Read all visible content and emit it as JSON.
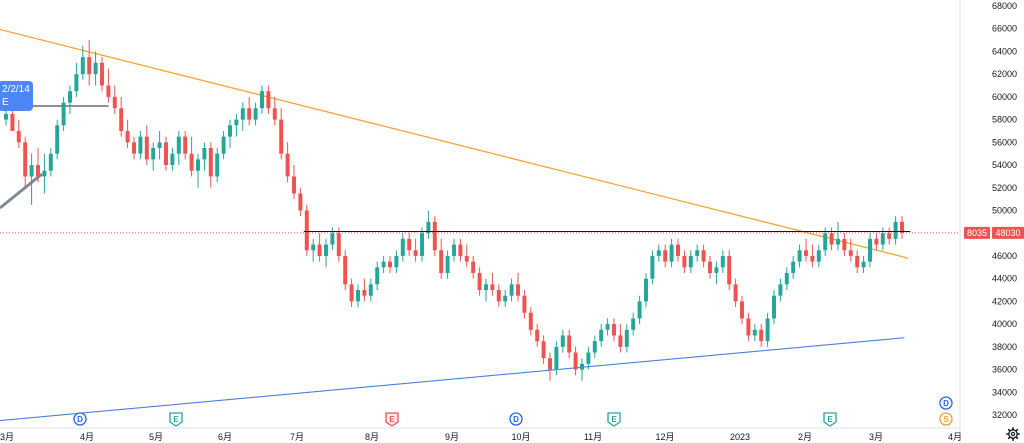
{
  "chart_data": {
    "type": "candlestick",
    "y_axis": {
      "range": [
        31000,
        68000
      ],
      "position": "right",
      "ticks": [
        "68000",
        "66000",
        "64000",
        "62000",
        "60000",
        "58000",
        "56000",
        "54000",
        "52000",
        "50000",
        "48000",
        "46000",
        "44000",
        "42000",
        "40000",
        "38000",
        "36000",
        "34000",
        "32000"
      ]
    },
    "x_axis": {
      "ticks": [
        "3月",
        "4月",
        "5月",
        "6月",
        "7月",
        "8月",
        "9月",
        "10月",
        "11月",
        "12月",
        "2023",
        "2月",
        "3月",
        "4月"
      ]
    },
    "price_labels": {
      "change": "8035",
      "last": "48030",
      "last_value": 48030
    },
    "tooltip": {
      "line1": "2/2/14",
      "line2": "E"
    },
    "colors": {
      "up": "#26a69a",
      "down": "#ef5350",
      "resistance": "#f7a437",
      "support": "#4d7fe0",
      "horizontal": "#131722",
      "last_price": "#ef5350"
    },
    "candles": [
      [
        58000,
        59000,
        57500,
        58500
      ],
      [
        58500,
        60000,
        57000,
        57000
      ],
      [
        57000,
        58000,
        55500,
        56000
      ],
      [
        56000,
        56500,
        52000,
        53000
      ],
      [
        53000,
        55000,
        50500,
        54000
      ],
      [
        54000,
        55500,
        52500,
        53000
      ],
      [
        53000,
        55000,
        51500,
        53500
      ],
      [
        53500,
        55500,
        53000,
        55000
      ],
      [
        55000,
        58000,
        54500,
        57500
      ],
      [
        57500,
        60000,
        57000,
        59500
      ],
      [
        59500,
        61000,
        58500,
        60500
      ],
      [
        60500,
        63000,
        60000,
        62000
      ],
      [
        62000,
        64500,
        61500,
        63500
      ],
      [
        63500,
        65000,
        61000,
        62000
      ],
      [
        62000,
        64000,
        61000,
        63000
      ],
      [
        63000,
        63500,
        60500,
        61000
      ],
      [
        61000,
        62500,
        59500,
        60000
      ],
      [
        60000,
        61000,
        58500,
        59000
      ],
      [
        59000,
        60000,
        56500,
        57000
      ],
      [
        57000,
        58000,
        55500,
        56000
      ],
      [
        56000,
        56500,
        54500,
        55000
      ],
      [
        55000,
        57000,
        54500,
        56500
      ],
      [
        56500,
        57500,
        54000,
        54500
      ],
      [
        54500,
        56000,
        53500,
        55500
      ],
      [
        55500,
        57000,
        54500,
        56000
      ],
      [
        56000,
        56500,
        53500,
        54000
      ],
      [
        54000,
        55500,
        53500,
        55000
      ],
      [
        55000,
        57000,
        54000,
        56500
      ],
      [
        56500,
        57000,
        54500,
        55000
      ],
      [
        55000,
        56500,
        53000,
        53500
      ],
      [
        53500,
        55000,
        52000,
        54500
      ],
      [
        54500,
        56000,
        53500,
        55500
      ],
      [
        55500,
        56000,
        52000,
        53000
      ],
      [
        53000,
        55500,
        52500,
        55000
      ],
      [
        55000,
        57000,
        54500,
        56500
      ],
      [
        56500,
        58000,
        55500,
        57500
      ],
      [
        57500,
        58500,
        56500,
        58000
      ],
      [
        58000,
        59500,
        57000,
        59000
      ],
      [
        59000,
        60000,
        57500,
        58000
      ],
      [
        58000,
        59500,
        57500,
        59000
      ],
      [
        59000,
        61000,
        58500,
        60500
      ],
      [
        60500,
        61000,
        58500,
        59000
      ],
      [
        59000,
        60000,
        57500,
        58000
      ],
      [
        58000,
        59000,
        54500,
        55000
      ],
      [
        55000,
        56000,
        52500,
        53000
      ],
      [
        53000,
        54000,
        51000,
        51500
      ],
      [
        51500,
        52000,
        49500,
        50000
      ],
      [
        50000,
        50500,
        46000,
        46500
      ],
      [
        46500,
        47500,
        45500,
        47000
      ],
      [
        47000,
        48000,
        45500,
        46000
      ],
      [
        46000,
        47500,
        45000,
        47000
      ],
      [
        47000,
        48500,
        46500,
        48000
      ],
      [
        48000,
        48500,
        45500,
        46000
      ],
      [
        46000,
        46500,
        43000,
        43500
      ],
      [
        43500,
        44000,
        41500,
        42000
      ],
      [
        42000,
        43500,
        41500,
        43000
      ],
      [
        43000,
        44000,
        42000,
        42500
      ],
      [
        42500,
        44000,
        42000,
        43500
      ],
      [
        43500,
        45500,
        43000,
        45000
      ],
      [
        45000,
        46000,
        44500,
        45500
      ],
      [
        45500,
        46000,
        44500,
        45000
      ],
      [
        45000,
        46500,
        44500,
        46000
      ],
      [
        46000,
        48000,
        45500,
        47500
      ],
      [
        47500,
        48000,
        46000,
        46500
      ],
      [
        46500,
        47500,
        45500,
        46000
      ],
      [
        46000,
        48500,
        45500,
        48000
      ],
      [
        48000,
        50000,
        47500,
        49000
      ],
      [
        49000,
        49500,
        46000,
        46500
      ],
      [
        46500,
        47500,
        44000,
        44500
      ],
      [
        44500,
        46500,
        44000,
        46000
      ],
      [
        46000,
        47500,
        45500,
        47000
      ],
      [
        47000,
        47500,
        45500,
        46000
      ],
      [
        46000,
        47000,
        45000,
        45500
      ],
      [
        45500,
        46000,
        44000,
        44500
      ],
      [
        44500,
        45000,
        42500,
        43000
      ],
      [
        43000,
        44000,
        42000,
        43500
      ],
      [
        43500,
        44500,
        42500,
        43000
      ],
      [
        43000,
        43500,
        41500,
        42000
      ],
      [
        42000,
        43000,
        41500,
        42500
      ],
      [
        42500,
        44000,
        42000,
        43500
      ],
      [
        43500,
        44500,
        42000,
        42500
      ],
      [
        42500,
        43000,
        40500,
        41000
      ],
      [
        41000,
        41500,
        39000,
        39500
      ],
      [
        39500,
        40000,
        38000,
        38500
      ],
      [
        38500,
        39000,
        36500,
        37000
      ],
      [
        37000,
        37500,
        35000,
        36000
      ],
      [
        36000,
        38500,
        35500,
        38000
      ],
      [
        38000,
        39500,
        37500,
        39000
      ],
      [
        39000,
        39500,
        37000,
        37500
      ],
      [
        37500,
        38000,
        35500,
        36000
      ],
      [
        36000,
        37000,
        35000,
        36500
      ],
      [
        36500,
        38000,
        36000,
        37500
      ],
      [
        37500,
        39000,
        37000,
        38500
      ],
      [
        38500,
        40000,
        38000,
        39500
      ],
      [
        39500,
        40500,
        39000,
        40000
      ],
      [
        40000,
        40500,
        38500,
        39000
      ],
      [
        39000,
        40000,
        37500,
        38000
      ],
      [
        38000,
        40000,
        37500,
        39500
      ],
      [
        39500,
        41000,
        39000,
        40500
      ],
      [
        40500,
        42500,
        40000,
        42000
      ],
      [
        42000,
        44500,
        41500,
        44000
      ],
      [
        44000,
        46500,
        43500,
        46000
      ],
      [
        46000,
        47000,
        45500,
        46500
      ],
      [
        46500,
        47000,
        45000,
        45500
      ],
      [
        45500,
        47500,
        45000,
        47000
      ],
      [
        47000,
        47500,
        45500,
        46000
      ],
      [
        46000,
        46500,
        44500,
        45000
      ],
      [
        45000,
        46500,
        44500,
        46000
      ],
      [
        46000,
        47000,
        45500,
        46500
      ],
      [
        46500,
        47000,
        45000,
        45500
      ],
      [
        45500,
        46000,
        44000,
        44500
      ],
      [
        44500,
        45500,
        43500,
        45000
      ],
      [
        45000,
        46500,
        44500,
        46000
      ],
      [
        46000,
        46500,
        43000,
        43500
      ],
      [
        43500,
        44000,
        41500,
        42000
      ],
      [
        42000,
        42500,
        40000,
        40500
      ],
      [
        40500,
        41000,
        38500,
        39000
      ],
      [
        39000,
        40000,
        38500,
        39500
      ],
      [
        39500,
        40000,
        38000,
        38500
      ],
      [
        38500,
        41000,
        38000,
        40500
      ],
      [
        40500,
        43000,
        40000,
        42500
      ],
      [
        42500,
        44000,
        42000,
        43500
      ],
      [
        43500,
        45000,
        43000,
        44500
      ],
      [
        44500,
        46000,
        44000,
        45500
      ],
      [
        45500,
        47000,
        45000,
        46500
      ],
      [
        46500,
        47500,
        45500,
        46000
      ],
      [
        46000,
        47000,
        45000,
        45500
      ],
      [
        45500,
        47000,
        45000,
        46500
      ],
      [
        46500,
        48500,
        46000,
        48000
      ],
      [
        48000,
        48500,
        46500,
        47000
      ],
      [
        47000,
        49000,
        46500,
        47500
      ],
      [
        47500,
        48000,
        46000,
        46500
      ],
      [
        46500,
        47500,
        45500,
        46000
      ],
      [
        46000,
        46500,
        44500,
        45000
      ],
      [
        45000,
        46000,
        44500,
        45500
      ],
      [
        45500,
        48000,
        45000,
        47500
      ],
      [
        47500,
        48000,
        46500,
        47000
      ],
      [
        47000,
        48500,
        46500,
        48000
      ],
      [
        48000,
        48500,
        47000,
        47500
      ],
      [
        47500,
        49500,
        47000,
        49000
      ],
      [
        49000,
        49500,
        47500,
        48030
      ]
    ],
    "resistance_line": {
      "from": {
        "index": 0,
        "value": 65800
      },
      "to": {
        "index": 141,
        "value": 45800
      }
    },
    "support_line": {
      "from": {
        "index": 0,
        "value": 31600
      },
      "to": {
        "index": 141,
        "value": 38800
      }
    },
    "horizontal_line": {
      "from_index": 0,
      "to_index": 14,
      "value": 59200
    },
    "breakout_level": {
      "from_index": 47,
      "to_index": 141,
      "value": 48150
    },
    "event_markers": [
      {
        "label": "D",
        "color": "#2962ff",
        "fill": "#ffffff",
        "shape": "circle"
      },
      {
        "label": "E",
        "color": "#26a69a",
        "fill": "#ffffff",
        "shape": "square"
      },
      {
        "label": "E",
        "color": "#ef5350",
        "fill": "#fdecea",
        "shape": "square"
      },
      {
        "label": "D",
        "color": "#2962ff",
        "fill": "#ffffff",
        "shape": "circle"
      },
      {
        "label": "E",
        "color": "#26a69a",
        "fill": "#ffffff",
        "shape": "square"
      },
      {
        "label": "E",
        "color": "#26a69a",
        "fill": "#ffffff",
        "shape": "square"
      },
      {
        "label": "D",
        "color": "#2962ff",
        "fill": "#ffffff",
        "shape": "circle"
      },
      {
        "label": "S",
        "color": "#f59d2a",
        "fill": "#ffffff",
        "shape": "circle"
      }
    ]
  }
}
